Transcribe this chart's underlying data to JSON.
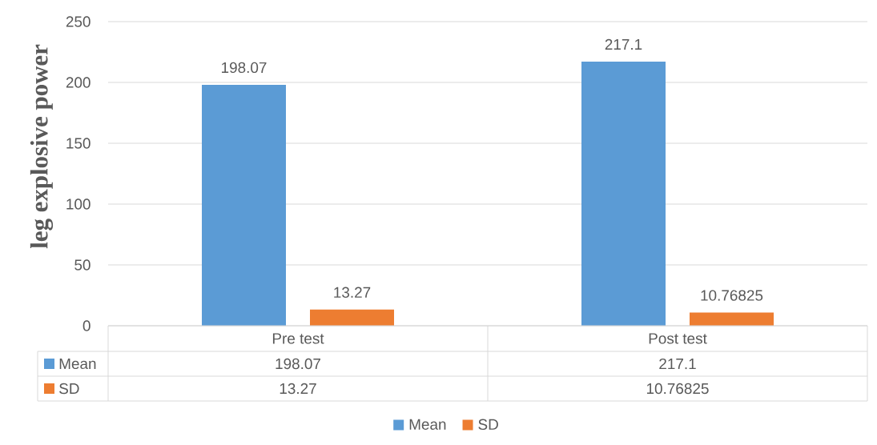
{
  "chart_data": {
    "type": "bar",
    "ylabel": "leg explosive power",
    "categories": [
      "Pre test",
      "Post test"
    ],
    "series": [
      {
        "name": "Mean",
        "color": "#5b9bd5",
        "values": [
          198.07,
          217.1
        ]
      },
      {
        "name": "SD",
        "color": "#ed7d31",
        "values": [
          13.27,
          10.76825
        ]
      }
    ],
    "ylim": [
      0,
      250
    ],
    "yticks": [
      0,
      50,
      100,
      150,
      200,
      250
    ],
    "grid": "y",
    "legend": "bottom",
    "data_labels": true,
    "annotations": [
      "198.07",
      "217.1",
      "13.27",
      "10.76825"
    ]
  }
}
